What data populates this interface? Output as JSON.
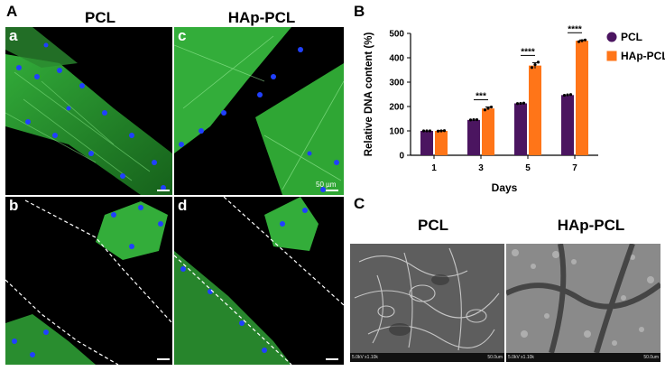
{
  "panels": {
    "A": {
      "letter": "A",
      "col1_title": "PCL",
      "col2_title": "HAp-PCL",
      "sub": [
        "a",
        "b",
        "c",
        "d"
      ],
      "scale_text": "50 µm"
    },
    "B": {
      "letter": "B"
    },
    "C": {
      "letter": "C",
      "col1_title": "PCL",
      "col2_title": "HAp-PCL",
      "sem_left_info": "5.0kV x1.10k",
      "sem_left_scale": "50.0um",
      "sem_right_info": "5.0kV x1.10k",
      "sem_right_scale": "50.0um"
    }
  },
  "colors": {
    "pcl": "#4b1560",
    "hap_pcl": "#ff7518",
    "actin": "#38c040",
    "nuclei": "#2040ff"
  },
  "chart_data": {
    "type": "bar",
    "categories": [
      "1",
      "3",
      "5",
      "7"
    ],
    "series": [
      {
        "name": "PCL",
        "values": [
          100,
          145,
          213,
          247
        ],
        "points": [
          [
            100,
            100,
            100
          ],
          [
            145,
            146,
            146
          ],
          [
            212,
            213,
            214
          ],
          [
            246,
            248,
            249
          ]
        ]
      },
      {
        "name": "HAp-PCL",
        "values": [
          100,
          192,
          368,
          470
        ],
        "points": [
          [
            99,
            100,
            101
          ],
          [
            186,
            193,
            198
          ],
          [
            360,
            372,
            382
          ],
          [
            466,
            470,
            473
          ]
        ],
        "errors": [
          1,
          6,
          12,
          3
        ]
      }
    ],
    "significance": [
      "",
      "***",
      "****",
      "****"
    ],
    "xlabel": "Days",
    "ylabel": "Relative DNA content (%)",
    "ylim": [
      0,
      500
    ],
    "yticks": [
      0,
      100,
      200,
      300,
      400,
      500
    ],
    "legend": "top-right"
  }
}
